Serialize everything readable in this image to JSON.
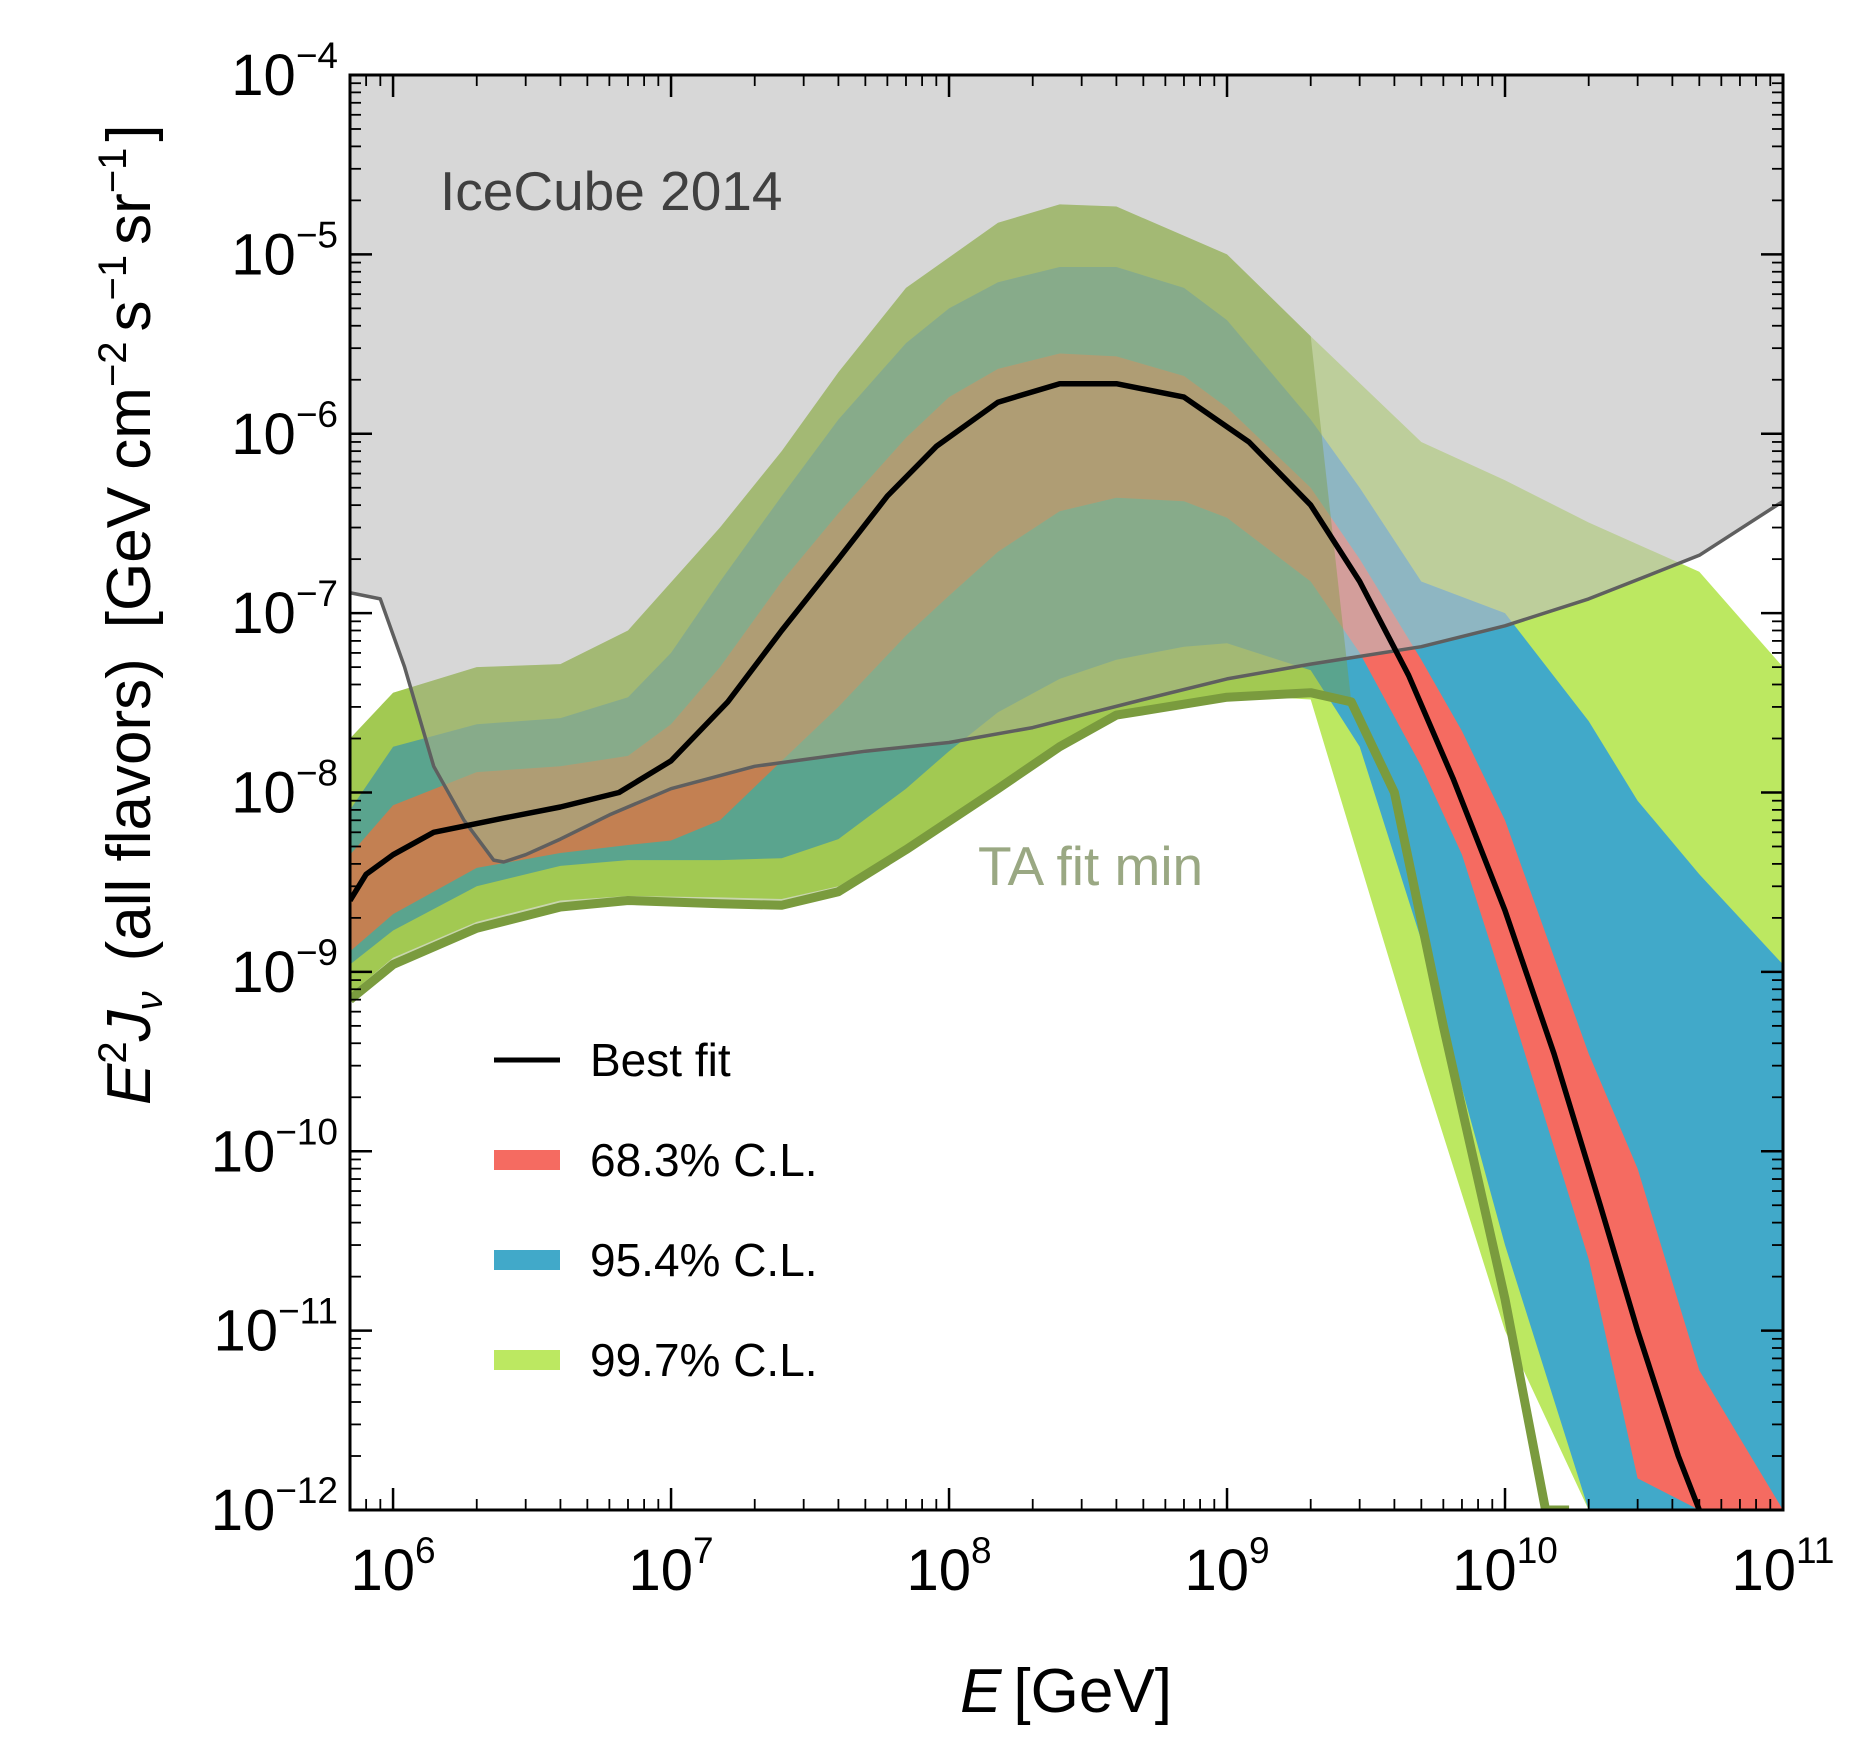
{
  "chart_data": {
    "type": "area",
    "xscale": "log",
    "yscale": "log",
    "xlim": [
      700000,
      100000000000
    ],
    "ylim": [
      1e-12,
      0.0001
    ],
    "xlabel": {
      "var": "E",
      "unit": "[GeV]"
    },
    "ylabel": {
      "base": "E",
      "sup": "2",
      "main": "J",
      "sub": "ν",
      "mid": "(all flavors)",
      "unit_open": "[GeV cm",
      "exp1": "−2",
      "s": "s",
      "exp2": "−1",
      "sr": "sr",
      "exp3": "−1",
      "unit_close": "]"
    },
    "x_ticks": [
      {
        "value": 1000000,
        "base": "10",
        "exp": "6"
      },
      {
        "value": 10000000,
        "base": "10",
        "exp": "7"
      },
      {
        "value": 100000000,
        "base": "10",
        "exp": "8"
      },
      {
        "value": 1000000000,
        "base": "10",
        "exp": "9"
      },
      {
        "value": 10000000000,
        "base": "10",
        "exp": "10"
      },
      {
        "value": 100000000000,
        "base": "10",
        "exp": "11"
      }
    ],
    "y_ticks": [
      {
        "value": 1e-12,
        "base": "10",
        "exp": "−12"
      },
      {
        "value": 1e-11,
        "base": "10",
        "exp": "−11"
      },
      {
        "value": 1e-10,
        "base": "10",
        "exp": "−10"
      },
      {
        "value": 1e-09,
        "base": "10",
        "exp": "−9"
      },
      {
        "value": 1e-08,
        "base": "10",
        "exp": "−8"
      },
      {
        "value": 1e-07,
        "base": "10",
        "exp": "−7"
      },
      {
        "value": 1e-06,
        "base": "10",
        "exp": "−6"
      },
      {
        "value": 1e-05,
        "base": "10",
        "exp": "−5"
      },
      {
        "value": 0.0001,
        "base": "10",
        "exp": "−4"
      }
    ],
    "annotations": {
      "icecube": "IceCube 2014",
      "ta": "TA fit min"
    },
    "legend": {
      "position": "lower-left",
      "entries": [
        {
          "label": "Best fit",
          "color": "#000000",
          "kind": "line"
        },
        {
          "label": "68.3% C.L.",
          "color": "#f56b61",
          "kind": "patch"
        },
        {
          "label": "95.4% C.L.",
          "color": "#41a9c9",
          "kind": "patch"
        },
        {
          "label": "99.7% C.L.",
          "color": "#bce861",
          "kind": "patch"
        }
      ]
    },
    "colors": {
      "icecube_fill": "#bfbfbf",
      "icecube_line": "#5f5f5f",
      "band68": "#f56b61",
      "band95": "#41a9c9",
      "band99": "#bce861",
      "ta_fill": "#7f9e3e",
      "ta_line": "#7a9b3e",
      "ta_text": "#9aa883",
      "best_fit": "#000000"
    },
    "icecube_limit": {
      "x": [
        700000,
        900000,
        1100000,
        1400000,
        1800000,
        2300000,
        2500000,
        3000000,
        4000000,
        6000000,
        10000000,
        20000000,
        50000000,
        100000000,
        200000000,
        500000000,
        1000000000,
        2000000000,
        5000000000,
        10000000000,
        20000000000,
        50000000000,
        100000000000
      ],
      "y": [
        1.3e-07,
        1.2e-07,
        5e-08,
        1.4e-08,
        7e-09,
        4.2e-09,
        4.1e-09,
        4.5e-09,
        5.5e-09,
        7.5e-09,
        1.05e-08,
        1.4e-08,
        1.7e-08,
        1.9e-08,
        2.3e-08,
        3.3e-08,
        4.3e-08,
        5.2e-08,
        6.5e-08,
        8.5e-08,
        1.2e-07,
        2.1e-07,
        4.2e-07
      ]
    },
    "band_99_7": {
      "x": [
        700000,
        1000000,
        2000000,
        4000000,
        7000000,
        15000000,
        25000000,
        40000000,
        70000000,
        150000000,
        250000000,
        400000000,
        1000000000,
        2000000000,
        5000000000,
        10000000000,
        20000000000,
        50000000000,
        100000000000
      ],
      "upper": [
        2e-08,
        3.6e-08,
        5e-08,
        5.2e-08,
        8e-08,
        3e-07,
        8e-07,
        2.2e-06,
        6.5e-06,
        1.5e-05,
        1.9e-05,
        1.85e-05,
        1e-05,
        3.5e-06,
        9e-07,
        5.5e-07,
        3.2e-07,
        1.7e-07,
        5e-08
      ],
      "lower": [
        7.5e-10,
        1.2e-09,
        1.9e-09,
        2.5e-09,
        2.65e-09,
        2.6e-09,
        2.55e-09,
        3e-09,
        5e-09,
        1.1e-08,
        1.9e-08,
        2.8e-08,
        3.5e-08,
        3.3e-08,
        3e-10,
        1e-11,
        1e-12,
        1e-12,
        1e-12
      ]
    },
    "band_95_4": {
      "x": [
        700000,
        1000000,
        2000000,
        4000000,
        7000000,
        10000000,
        15000000,
        25000000,
        40000000,
        70000000,
        100000000,
        150000000,
        250000000,
        400000000,
        700000000,
        1000000000,
        2000000000,
        3000000000,
        5000000000,
        10000000000,
        20000000000,
        30000000000,
        50000000000,
        100000000000
      ],
      "upper": [
        8e-09,
        1.8e-08,
        2.4e-08,
        2.6e-08,
        3.4e-08,
        6e-08,
        1.5e-07,
        4.5e-07,
        1.2e-06,
        3.2e-06,
        5e-06,
        7e-06,
        8.5e-06,
        8.5e-06,
        6.5e-06,
        4.3e-06,
        1.2e-06,
        5e-07,
        1.5e-07,
        1e-07,
        2.5e-08,
        9e-09,
        3.5e-09,
        1.1e-09
      ],
      "lower": [
        1.1e-09,
        1.7e-09,
        3e-09,
        3.9e-09,
        4.2e-09,
        4.2e-09,
        4.2e-09,
        4.3e-09,
        5.5e-09,
        1.05e-08,
        1.7e-08,
        2.8e-08,
        4.3e-08,
        5.5e-08,
        6.5e-08,
        6.8e-08,
        4.8e-08,
        1.8e-08,
        1.5e-09,
        3e-11,
        1e-12,
        1e-12,
        1e-12,
        1e-12
      ]
    },
    "band_68_3": {
      "x": [
        700000,
        1000000,
        2000000,
        4000000,
        7000000,
        10000000,
        15000000,
        25000000,
        40000000,
        70000000,
        100000000,
        150000000,
        250000000,
        400000000,
        700000000,
        1000000000,
        2000000000,
        3000000000,
        5000000000,
        7000000000,
        10000000000,
        20000000000,
        30000000000,
        50000000000,
        100000000000
      ],
      "upper": [
        4.5e-09,
        8.5e-09,
        1.3e-08,
        1.4e-08,
        1.6e-08,
        2.4e-08,
        5e-08,
        1.5e-07,
        3.6e-07,
        9.5e-07,
        1.6e-06,
        2.3e-06,
        2.8e-06,
        2.7e-06,
        2.1e-06,
        1.4e-06,
        5e-07,
        2e-07,
        5.5e-08,
        2.2e-08,
        7e-09,
        3.5e-10,
        8e-11,
        6e-12,
        1e-12
      ],
      "lower": [
        1.3e-09,
        2.1e-09,
        3.8e-09,
        4.6e-09,
        5.1e-09,
        5.4e-09,
        7e-09,
        1.5e-08,
        3e-08,
        7.5e-08,
        1.25e-07,
        2.2e-07,
        3.7e-07,
        4.4e-07,
        4.2e-07,
        3.4e-07,
        1.5e-07,
        6e-08,
        1.4e-08,
        4.5e-09,
        8e-10,
        2.5e-11,
        1.5e-12,
        1e-12,
        1e-12
      ]
    },
    "best_fit": {
      "x": [
        700000,
        800000,
        1000000,
        1400000,
        2500000,
        4000000,
        6500000,
        10000000,
        16000000,
        25000000,
        40000000,
        60000000,
        90000000,
        150000000,
        250000000,
        400000000,
        700000000,
        1200000000,
        2000000000,
        3000000000,
        4500000000,
        6500000000,
        10000000000,
        15000000000,
        22000000000,
        30000000000,
        42000000000,
        50000000000
      ],
      "y": [
        2.5e-09,
        3.5e-09,
        4.5e-09,
        6e-09,
        7.2e-09,
        8.3e-09,
        1e-08,
        1.5e-08,
        3.2e-08,
        8e-08,
        2e-07,
        4.5e-07,
        8.5e-07,
        1.5e-06,
        1.9e-06,
        1.9e-06,
        1.6e-06,
        9e-07,
        4e-07,
        1.5e-07,
        4.5e-08,
        1.2e-08,
        2.2e-09,
        3.5e-10,
        5e-11,
        1e-11,
        2e-12,
        1e-12
      ]
    },
    "ta_fit_min_lower_edge": {
      "x": [
        700000,
        1000000,
        2000000,
        4000000,
        7000000,
        15000000,
        25000000,
        40000000,
        70000000,
        150000000,
        250000000,
        400000000,
        1000000000,
        2000000000,
        2800000000,
        4000000000,
        6000000000,
        10000000000,
        14000000000,
        17000000000
      ],
      "y": [
        7e-10,
        1.1e-09,
        1.75e-09,
        2.3e-09,
        2.5e-09,
        2.4e-09,
        2.35e-09,
        2.8e-09,
        4.8e-09,
        1.05e-08,
        1.8e-08,
        2.7e-08,
        3.4e-08,
        3.6e-08,
        3.2e-08,
        1e-08,
        5e-10,
        1.5e-11,
        1e-12,
        1e-12
      ]
    }
  }
}
